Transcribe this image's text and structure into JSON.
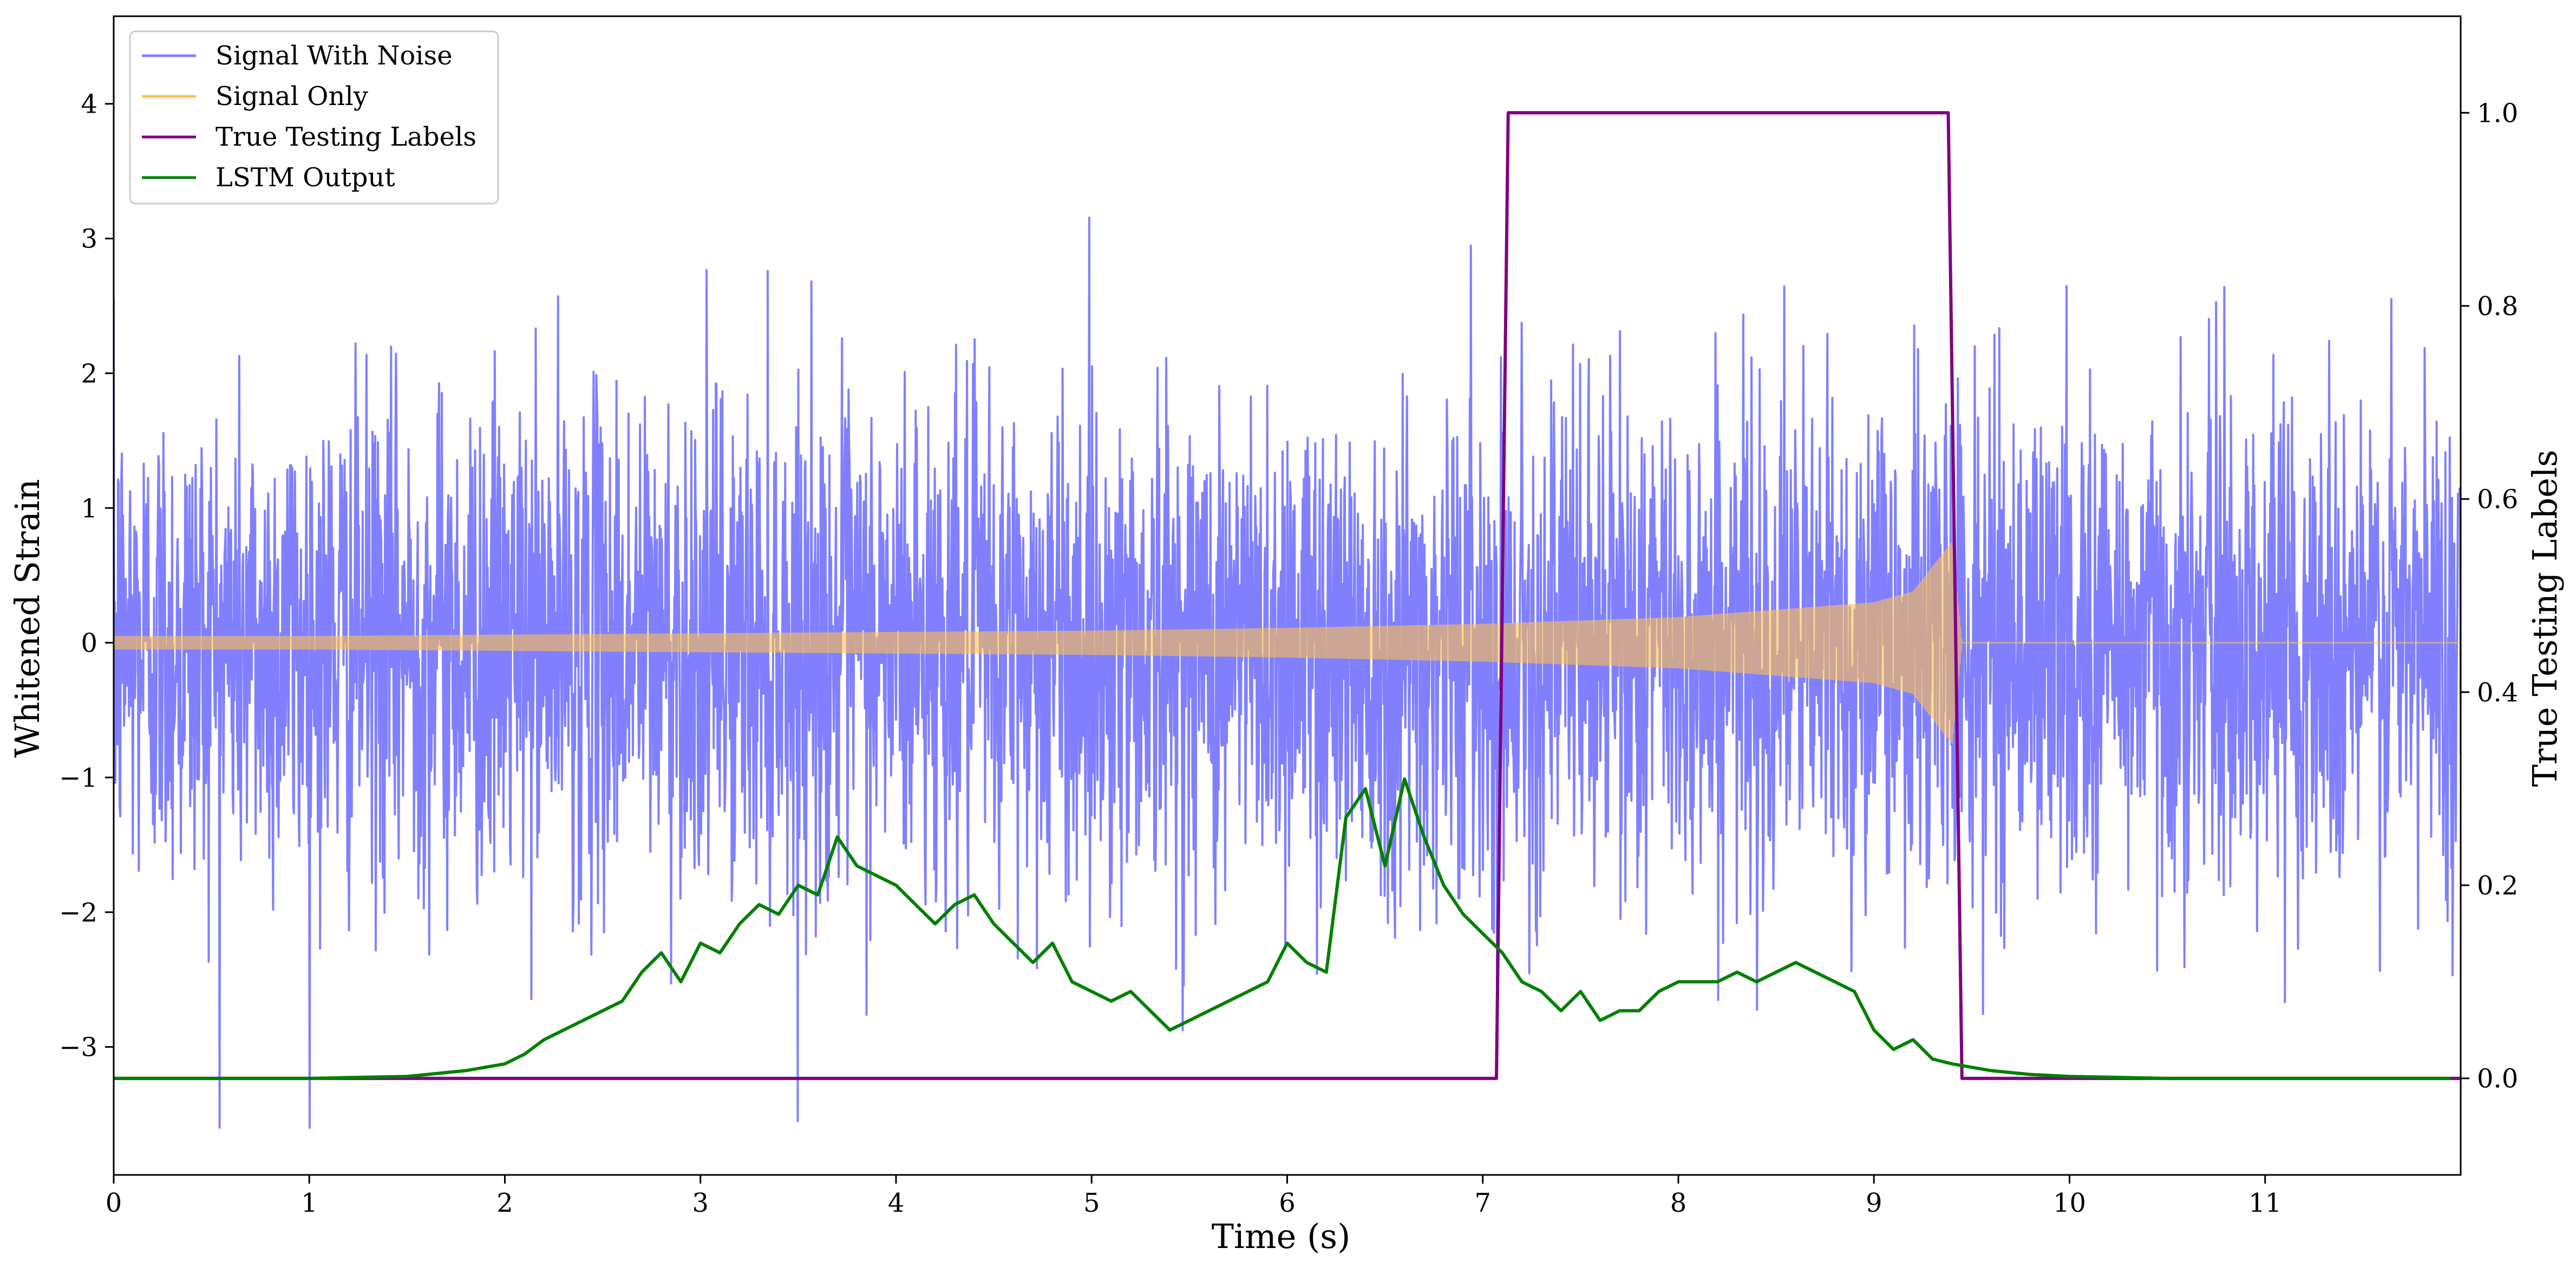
{
  "chart_data": {
    "type": "line",
    "title": "",
    "xlabel": "Time (s)",
    "ylabel": "Whitened Strain",
    "y2label": "True Testing Labels",
    "xlim": [
      0,
      12
    ],
    "ylim": [
      -3.95,
      4.65
    ],
    "y2lim": [
      -0.1,
      1.1
    ],
    "xticks": [
      0,
      1,
      2,
      3,
      4,
      5,
      6,
      7,
      8,
      9,
      10,
      11
    ],
    "xtick_labels": [
      "0",
      "1",
      "2",
      "3",
      "4",
      "5",
      "6",
      "7",
      "8",
      "9",
      "10",
      "11"
    ],
    "yticks": [
      -3,
      -2,
      -1,
      0,
      1,
      2,
      3,
      4
    ],
    "ytick_labels": [
      "−3",
      "−2",
      "−1",
      "0",
      "1",
      "2",
      "3",
      "4"
    ],
    "y2ticks": [
      0.0,
      0.2,
      0.4,
      0.6,
      0.8,
      1.0
    ],
    "y2tick_labels": [
      "0.0",
      "0.2",
      "0.4",
      "0.6",
      "0.8",
      "1.0"
    ],
    "grid": false,
    "legend_position": "top-left",
    "series": [
      {
        "name": "Signal With Noise",
        "color": "#8080ff",
        "axis": "left",
        "style": "dense noise, std ~0.9, extremes ~ -3.6 to 4.3",
        "x": [
          0,
          12
        ],
        "y": [
          0,
          0
        ]
      },
      {
        "name": "Signal Only",
        "color": "#ffc04d",
        "axis": "left",
        "style": "chirp, amplitude ~0.05 growing to ~1.0 at merger",
        "x": [
          0,
          1,
          2,
          3,
          4,
          5,
          6,
          7,
          8,
          9,
          9.2,
          9.4,
          9.45,
          12
        ],
        "y": [
          0.05,
          0.05,
          0.06,
          0.07,
          0.08,
          0.09,
          0.11,
          0.14,
          0.19,
          0.3,
          0.38,
          0.75,
          0,
          0
        ]
      },
      {
        "name": "True Testing Labels",
        "color": "#800080",
        "axis": "right",
        "x": [
          0,
          7.07,
          7.13,
          9.38,
          9.45,
          12
        ],
        "y": [
          0,
          0,
          1,
          1,
          0,
          0
        ]
      },
      {
        "name": "LSTM Output",
        "color": "#008000",
        "axis": "right",
        "x": [
          0,
          1.0,
          1.5,
          1.8,
          2.0,
          2.1,
          2.2,
          2.4,
          2.6,
          2.7,
          2.8,
          2.9,
          3.0,
          3.1,
          3.2,
          3.3,
          3.4,
          3.5,
          3.6,
          3.7,
          3.8,
          3.9,
          4.0,
          4.1,
          4.2,
          4.3,
          4.4,
          4.5,
          4.6,
          4.7,
          4.8,
          4.9,
          5.0,
          5.1,
          5.2,
          5.3,
          5.4,
          5.5,
          5.6,
          5.7,
          5.8,
          5.9,
          6.0,
          6.1,
          6.2,
          6.3,
          6.4,
          6.5,
          6.6,
          6.7,
          6.8,
          6.9,
          7.0,
          7.1,
          7.2,
          7.3,
          7.4,
          7.5,
          7.6,
          7.7,
          7.8,
          7.9,
          8.0,
          8.1,
          8.2,
          8.3,
          8.4,
          8.5,
          8.6,
          8.7,
          8.8,
          8.9,
          9.0,
          9.1,
          9.2,
          9.3,
          9.4,
          9.6,
          9.8,
          10.0,
          10.5,
          11.95
        ],
        "y": [
          0.0,
          0.0,
          0.002,
          0.008,
          0.015,
          0.025,
          0.04,
          0.06,
          0.08,
          0.11,
          0.13,
          0.1,
          0.14,
          0.13,
          0.16,
          0.18,
          0.17,
          0.2,
          0.19,
          0.25,
          0.22,
          0.21,
          0.2,
          0.18,
          0.16,
          0.18,
          0.19,
          0.16,
          0.14,
          0.12,
          0.14,
          0.1,
          0.09,
          0.08,
          0.09,
          0.07,
          0.05,
          0.06,
          0.07,
          0.08,
          0.09,
          0.1,
          0.14,
          0.12,
          0.11,
          0.27,
          0.3,
          0.22,
          0.31,
          0.25,
          0.2,
          0.17,
          0.15,
          0.13,
          0.1,
          0.09,
          0.07,
          0.09,
          0.06,
          0.07,
          0.07,
          0.09,
          0.1,
          0.1,
          0.1,
          0.11,
          0.1,
          0.11,
          0.12,
          0.11,
          0.1,
          0.09,
          0.05,
          0.03,
          0.04,
          0.02,
          0.015,
          0.008,
          0.004,
          0.002,
          0.0,
          0.0
        ]
      }
    ]
  }
}
